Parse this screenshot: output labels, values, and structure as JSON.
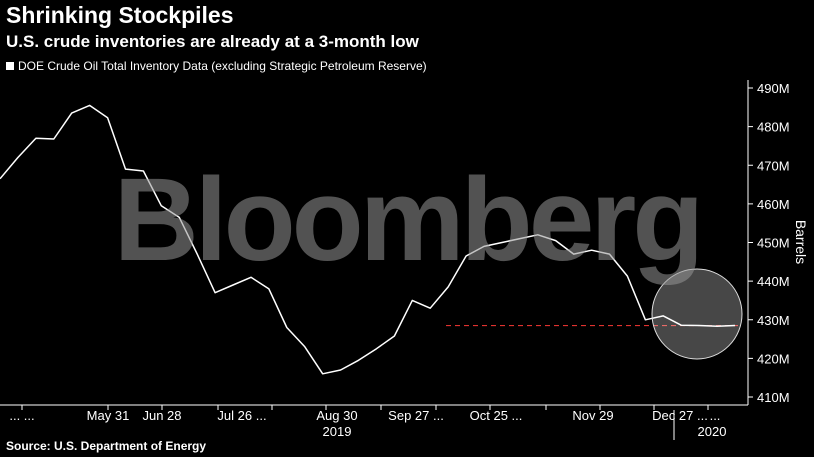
{
  "header": {
    "title": "Shrinking Stockpiles",
    "subtitle": "U.S. crude inventories are already at a 3-month low",
    "legend_label": "DOE Crude Oil Total Inventory Data (excluding Strategic Petroleum Reserve)"
  },
  "footer": {
    "source": "Source: U.S. Department of Energy"
  },
  "watermark": "Bloomberg",
  "colors": {
    "background": "#000000",
    "line": "#ffffff",
    "reference_line": "#e0322f",
    "highlight": "#ffffff"
  },
  "chart_data": {
    "type": "line",
    "title": "Shrinking Stockpiles",
    "ylabel": "Barrels",
    "ylim": [
      410,
      490
    ],
    "y_unit": "M",
    "y_ticks": [
      "490M",
      "480M",
      "470M",
      "460M",
      "450M",
      "440M",
      "430M",
      "420M",
      "410M"
    ],
    "y_tick_values": [
      490,
      480,
      470,
      460,
      450,
      440,
      430,
      420,
      410
    ],
    "x_tick_labels": [
      "... ...",
      "May 31",
      "Jun 28",
      "Jul 26 ...",
      "Aug 30",
      "Sep 27 ...",
      "Oct 25 ...",
      "Nov 29",
      "Dec 27 ...",
      "..."
    ],
    "x_year_labels": [
      "2019",
      "2020"
    ],
    "grid": false,
    "legend_position": "top-left",
    "reference_line": {
      "value": 428.5,
      "style": "dashed"
    },
    "series": [
      {
        "name": "DOE Crude Oil Total Inventory Data (excluding Strategic Petroleum Reserve)",
        "x": [
          "2019-04-12",
          "2019-04-19",
          "2019-04-26",
          "2019-05-03",
          "2019-05-10",
          "2019-05-17",
          "2019-05-24",
          "2019-05-31",
          "2019-06-07",
          "2019-06-14",
          "2019-06-21",
          "2019-06-28",
          "2019-07-05",
          "2019-07-12",
          "2019-07-19",
          "2019-07-26",
          "2019-08-02",
          "2019-08-09",
          "2019-08-16",
          "2019-08-23",
          "2019-08-30",
          "2019-09-06",
          "2019-09-13",
          "2019-09-20",
          "2019-09-27",
          "2019-10-04",
          "2019-10-11",
          "2019-10-18",
          "2019-10-25",
          "2019-11-01",
          "2019-11-08",
          "2019-11-15",
          "2019-11-22",
          "2019-11-29",
          "2019-12-06",
          "2019-12-13",
          "2019-12-20",
          "2019-12-27",
          "2020-01-03",
          "2020-01-10",
          "2020-01-17",
          "2020-01-24"
        ],
        "values": [
          466.5,
          472.0,
          477.0,
          476.8,
          483.5,
          485.5,
          482.3,
          469.0,
          468.5,
          459.5,
          456.5,
          447.0,
          437.0,
          439.0,
          441.0,
          438.0,
          428.0,
          423.0,
          416.0,
          417.0,
          419.5,
          422.5,
          425.8,
          435.0,
          433.0,
          438.5,
          446.5,
          449.0,
          450.0,
          451.0,
          452.0,
          450.5,
          447.0,
          448.0,
          447.0,
          441.3,
          430.0,
          431.0,
          428.6,
          428.5,
          428.3,
          428.5
        ]
      }
    ]
  }
}
